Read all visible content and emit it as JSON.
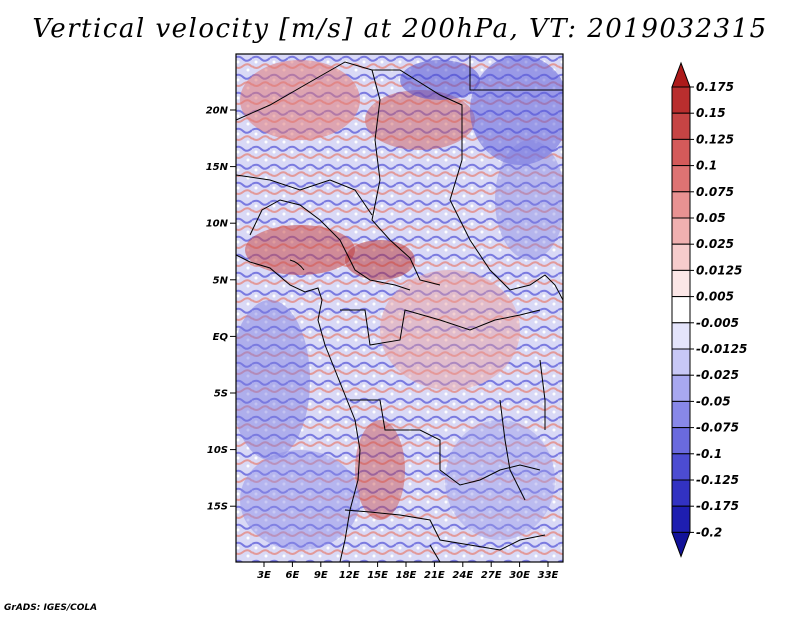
{
  "title": "Vertical velocity [m/s] at 200hPa, VT: 2019032315",
  "credit": "GrADS: IGES/COLA",
  "map": {
    "lat_labels": [
      "20N",
      "15N",
      "10N",
      "5N",
      "EQ",
      "5S",
      "10S",
      "15S"
    ],
    "lon_labels": [
      "3E",
      "6E",
      "9E",
      "12E",
      "15E",
      "18E",
      "21E",
      "24E",
      "27E",
      "30E",
      "33E"
    ]
  },
  "colorbar": {
    "levels": [
      "0.175",
      "0.15",
      "0.125",
      "0.1",
      "0.075",
      "0.05",
      "0.025",
      "0.0125",
      "0.005",
      "-0.005",
      "-0.0125",
      "-0.025",
      "-0.05",
      "-0.075",
      "-0.1",
      "-0.125",
      "-0.175",
      "-0.2"
    ],
    "colors": [
      "#ad1a1a",
      "#b92e2e",
      "#c64444",
      "#d45a5a",
      "#de7373",
      "#e89292",
      "#f0b0b0",
      "#f6cccc",
      "#fbe6e6",
      "#ffffff",
      "#e4e4fb",
      "#c8c8f6",
      "#a8a8f0",
      "#8888e8",
      "#6a6ade",
      "#4c4cd2",
      "#3232c2",
      "#1e1eb0",
      "#12129a"
    ]
  }
}
